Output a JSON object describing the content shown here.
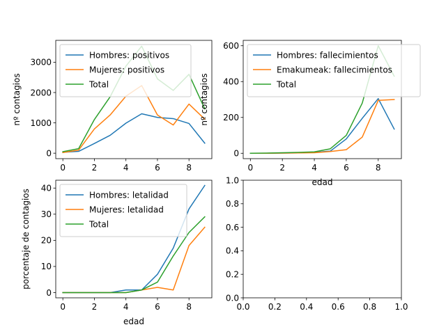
{
  "chart_data": [
    {
      "type": "line",
      "xlabel": "",
      "ylabel": "nº contagios",
      "xlim": [
        -0.45,
        9.45
      ],
      "ylim": [
        -180,
        3720
      ],
      "xticks": [
        0,
        2,
        4,
        6,
        8
      ],
      "yticks": [
        0,
        1000,
        2000,
        3000
      ],
      "x": [
        0,
        1,
        2,
        3,
        4,
        5,
        6,
        7,
        8,
        9
      ],
      "legend_position": "upper-left",
      "series": [
        {
          "name": "Hombres: positivos",
          "color": "#1f77b4",
          "values": [
            30,
            60,
            320,
            590,
            990,
            1300,
            1180,
            1140,
            980,
            330
          ]
        },
        {
          "name": "Mujeres: positivos",
          "color": "#ff7f0e",
          "values": [
            20,
            100,
            800,
            1260,
            1880,
            2230,
            1260,
            930,
            1620,
            1120
          ]
        },
        {
          "name": "Total",
          "color": "#2ca02c",
          "values": [
            50,
            150,
            1110,
            1860,
            2870,
            3530,
            2450,
            2070,
            2600,
            1460
          ]
        }
      ]
    },
    {
      "type": "line",
      "xlabel": "edad",
      "ylabel": "nº contagios",
      "xlim": [
        -0.45,
        9.45
      ],
      "ylim": [
        -30,
        630
      ],
      "xticks": [
        0,
        2,
        4,
        6,
        8
      ],
      "yticks": [
        0,
        200,
        400,
        600
      ],
      "x": [
        0,
        1,
        2,
        3,
        4,
        5,
        6,
        7,
        8,
        9
      ],
      "legend_position": "upper-left",
      "series": [
        {
          "name": "Hombres: fallecimientos",
          "color": "#1f77b4",
          "values": [
            0,
            0,
            1,
            2,
            5,
            12,
            80,
            195,
            305,
            135
          ]
        },
        {
          "name": "Emakumeak: fallecimientos",
          "color": "#ff7f0e",
          "values": [
            0,
            0,
            1,
            2,
            3,
            10,
            20,
            90,
            295,
            300
          ]
        },
        {
          "name": "Total",
          "color": "#2ca02c",
          "values": [
            0,
            1,
            3,
            5,
            8,
            25,
            100,
            280,
            600,
            430
          ]
        }
      ]
    },
    {
      "type": "line",
      "xlabel": "edad",
      "ylabel": "porcentaje de contagios",
      "xlim": [
        -0.45,
        9.45
      ],
      "ylim": [
        -2,
        43
      ],
      "xticks": [
        0,
        2,
        4,
        6,
        8
      ],
      "yticks": [
        0,
        10,
        20,
        30,
        40
      ],
      "x": [
        0,
        1,
        2,
        3,
        4,
        5,
        6,
        7,
        8,
        9
      ],
      "legend_position": "upper-left",
      "series": [
        {
          "name": " Hombres: letalidad",
          "color": "#1f77b4",
          "values": [
            0,
            0,
            0,
            0,
            1,
            1,
            7,
            17,
            32,
            41
          ]
        },
        {
          "name": "Mujeres: letalidad",
          "color": "#ff7f0e",
          "values": [
            0,
            0,
            0,
            0,
            0,
            1,
            2,
            1,
            18,
            25
          ]
        },
        {
          "name": "Total",
          "color": "#2ca02c",
          "values": [
            0,
            0,
            0,
            0,
            0,
            1,
            4,
            14,
            23,
            29
          ]
        }
      ]
    },
    {
      "type": "line",
      "xlabel": "",
      "ylabel": "",
      "xlim": [
        0,
        1
      ],
      "ylim": [
        0,
        1
      ],
      "xticks": [
        0.0,
        0.2,
        0.4,
        0.6,
        0.8,
        1.0
      ],
      "yticks": [
        0.0,
        0.2,
        0.4,
        0.6,
        0.8,
        1.0
      ],
      "xtick_labels": [
        "0.0",
        "0.2",
        "0.4",
        "0.6",
        "0.8",
        "1.0"
      ],
      "ytick_labels": [
        "0.0",
        "0.2",
        "0.4",
        "0.6",
        "0.8",
        "1.0"
      ],
      "x": [],
      "series": []
    }
  ]
}
